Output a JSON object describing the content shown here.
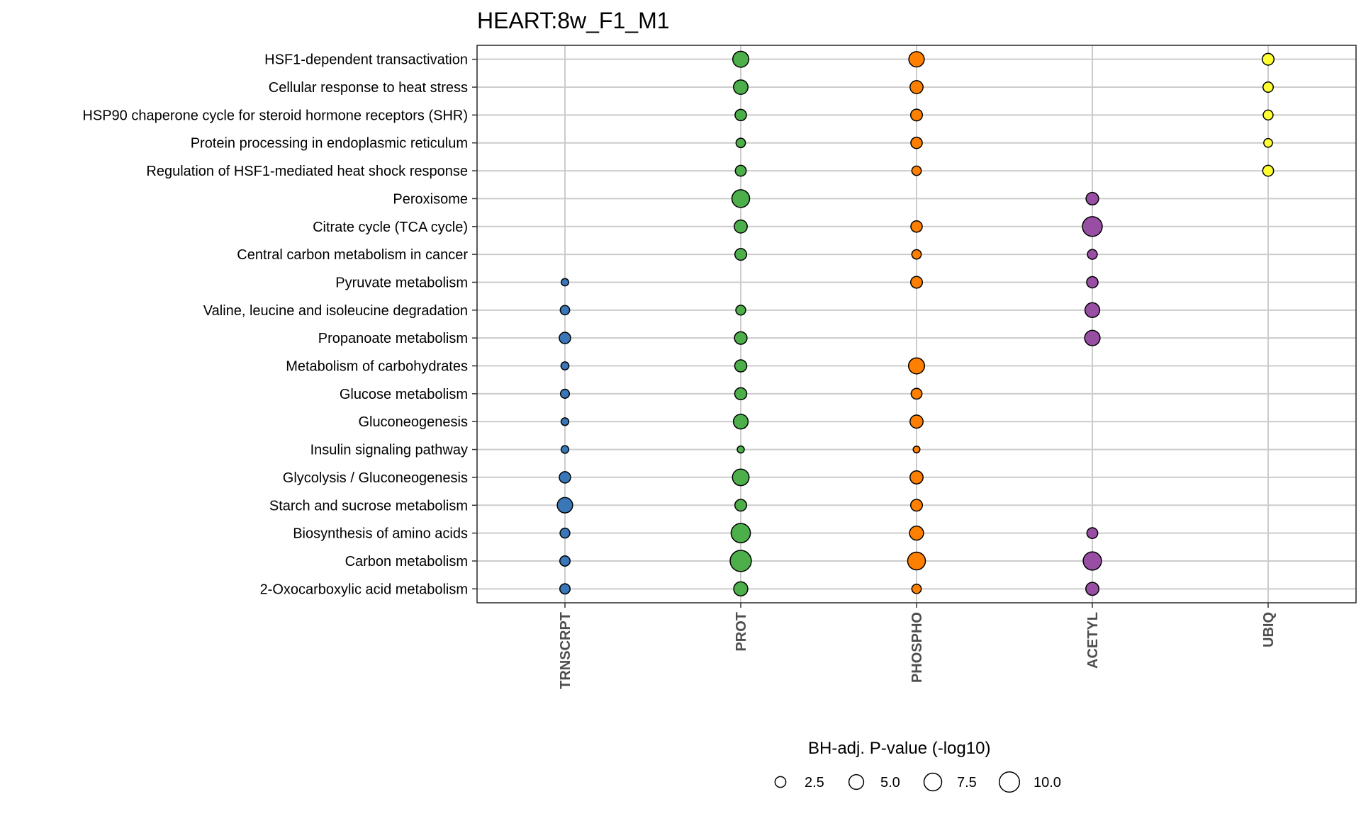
{
  "chart_data": {
    "type": "scatter",
    "title": "HEART:8w_F1_M1",
    "columns": [
      "TRNSCRPT",
      "PROT",
      "PHOSPHO",
      "ACETYL",
      "UBIQ"
    ],
    "column_colors": {
      "TRNSCRPT": "#3a77b8",
      "PROT": "#4daf4a",
      "PHOSPHO": "#ff7f00",
      "ACETYL": "#984ea3",
      "UBIQ": "#ffff33"
    },
    "rows": [
      "HSF1-dependent transactivation",
      "Cellular response to heat stress",
      "HSP90 chaperone cycle for steroid hormone receptors (SHR)",
      "Protein processing in endoplasmic reticulum",
      "Regulation of HSF1-mediated heat shock response",
      "Peroxisome",
      "Citrate cycle (TCA cycle)",
      "Central carbon metabolism in cancer",
      "Pyruvate metabolism",
      "Valine, leucine and isoleucine degradation",
      "Propanoate metabolism",
      "Metabolism of carbohydrates",
      "Glucose metabolism",
      "Gluconeogenesis",
      "Insulin signaling pathway",
      "Glycolysis / Gluconeogenesis",
      "Starch and sucrose metabolism",
      "Biosynthesis of amino acids",
      "Carbon metabolism",
      "2-Oxocarboxylic acid metabolism"
    ],
    "points": [
      {
        "row": "HSF1-dependent transactivation",
        "col": "PROT",
        "value": 6.0
      },
      {
        "row": "HSF1-dependent transactivation",
        "col": "PHOSPHO",
        "value": 5.5
      },
      {
        "row": "HSF1-dependent transactivation",
        "col": "UBIQ",
        "value": 3.0
      },
      {
        "row": "Cellular response to heat stress",
        "col": "PROT",
        "value": 4.8
      },
      {
        "row": "Cellular response to heat stress",
        "col": "PHOSPHO",
        "value": 3.8
      },
      {
        "row": "Cellular response to heat stress",
        "col": "UBIQ",
        "value": 2.2
      },
      {
        "row": "HSP90 chaperone cycle for steroid hormone receptors (SHR)",
        "col": "PROT",
        "value": 2.8
      },
      {
        "row": "HSP90 chaperone cycle for steroid hormone receptors (SHR)",
        "col": "PHOSPHO",
        "value": 3.0
      },
      {
        "row": "HSP90 chaperone cycle for steroid hormone receptors (SHR)",
        "col": "UBIQ",
        "value": 2.0
      },
      {
        "row": "Protein processing in endoplasmic reticulum",
        "col": "PROT",
        "value": 1.8
      },
      {
        "row": "Protein processing in endoplasmic reticulum",
        "col": "PHOSPHO",
        "value": 2.8
      },
      {
        "row": "Protein processing in endoplasmic reticulum",
        "col": "UBIQ",
        "value": 1.5
      },
      {
        "row": "Regulation of HSF1-mediated heat shock response",
        "col": "PROT",
        "value": 2.5
      },
      {
        "row": "Regulation of HSF1-mediated heat shock response",
        "col": "PHOSPHO",
        "value": 1.8
      },
      {
        "row": "Regulation of HSF1-mediated heat shock response",
        "col": "UBIQ",
        "value": 2.5
      },
      {
        "row": "Peroxisome",
        "col": "PROT",
        "value": 7.5
      },
      {
        "row": "Peroxisome",
        "col": "ACETYL",
        "value": 3.5
      },
      {
        "row": "Citrate cycle (TCA cycle)",
        "col": "PROT",
        "value": 3.8
      },
      {
        "row": "Citrate cycle (TCA cycle)",
        "col": "PHOSPHO",
        "value": 2.8
      },
      {
        "row": "Citrate cycle (TCA cycle)",
        "col": "ACETYL",
        "value": 9.5
      },
      {
        "row": "Central carbon metabolism in cancer",
        "col": "PROT",
        "value": 3.0
      },
      {
        "row": "Central carbon metabolism in cancer",
        "col": "PHOSPHO",
        "value": 1.8
      },
      {
        "row": "Central carbon metabolism in cancer",
        "col": "ACETYL",
        "value": 2.0
      },
      {
        "row": "Pyruvate metabolism",
        "col": "TRNSCRPT",
        "value": 1.0
      },
      {
        "row": "Pyruvate metabolism",
        "col": "PHOSPHO",
        "value": 3.0
      },
      {
        "row": "Pyruvate metabolism",
        "col": "ACETYL",
        "value": 2.8
      },
      {
        "row": "Valine, leucine and isoleucine degradation",
        "col": "TRNSCRPT",
        "value": 1.8
      },
      {
        "row": "Valine, leucine and isoleucine degradation",
        "col": "PROT",
        "value": 2.0
      },
      {
        "row": "Valine, leucine and isoleucine degradation",
        "col": "ACETYL",
        "value": 5.0
      },
      {
        "row": "Propanoate metabolism",
        "col": "TRNSCRPT",
        "value": 2.8
      },
      {
        "row": "Propanoate metabolism",
        "col": "PROT",
        "value": 3.5
      },
      {
        "row": "Propanoate metabolism",
        "col": "ACETYL",
        "value": 5.5
      },
      {
        "row": "Metabolism of carbohydrates",
        "col": "TRNSCRPT",
        "value": 1.2
      },
      {
        "row": "Metabolism of carbohydrates",
        "col": "PROT",
        "value": 3.2
      },
      {
        "row": "Metabolism of carbohydrates",
        "col": "PHOSPHO",
        "value": 6.0
      },
      {
        "row": "Glucose metabolism",
        "col": "TRNSCRPT",
        "value": 1.6
      },
      {
        "row": "Glucose metabolism",
        "col": "PROT",
        "value": 3.2
      },
      {
        "row": "Glucose metabolism",
        "col": "PHOSPHO",
        "value": 2.5
      },
      {
        "row": "Gluconeogenesis",
        "col": "TRNSCRPT",
        "value": 1.1
      },
      {
        "row": "Gluconeogenesis",
        "col": "PROT",
        "value": 5.0
      },
      {
        "row": "Gluconeogenesis",
        "col": "PHOSPHO",
        "value": 3.8
      },
      {
        "row": "Insulin signaling pathway",
        "col": "TRNSCRPT",
        "value": 1.1
      },
      {
        "row": "Insulin signaling pathway",
        "col": "PROT",
        "value": 0.9
      },
      {
        "row": "Insulin signaling pathway",
        "col": "PHOSPHO",
        "value": 0.8
      },
      {
        "row": "Glycolysis / Gluconeogenesis",
        "col": "TRNSCRPT",
        "value": 2.8
      },
      {
        "row": "Glycolysis / Gluconeogenesis",
        "col": "PROT",
        "value": 6.5
      },
      {
        "row": "Glycolysis / Gluconeogenesis",
        "col": "PHOSPHO",
        "value": 3.8
      },
      {
        "row": "Starch and sucrose metabolism",
        "col": "TRNSCRPT",
        "value": 5.5
      },
      {
        "row": "Starch and sucrose metabolism",
        "col": "PROT",
        "value": 3.0
      },
      {
        "row": "Starch and sucrose metabolism",
        "col": "PHOSPHO",
        "value": 3.0
      },
      {
        "row": "Biosynthesis of amino acids",
        "col": "TRNSCRPT",
        "value": 2.0
      },
      {
        "row": "Biosynthesis of amino acids",
        "col": "PROT",
        "value": 9.0
      },
      {
        "row": "Biosynthesis of amino acids",
        "col": "PHOSPHO",
        "value": 4.5
      },
      {
        "row": "Biosynthesis of amino acids",
        "col": "ACETYL",
        "value": 2.5
      },
      {
        "row": "Carbon metabolism",
        "col": "TRNSCRPT",
        "value": 2.2
      },
      {
        "row": "Carbon metabolism",
        "col": "PROT",
        "value": 11.0
      },
      {
        "row": "Carbon metabolism",
        "col": "PHOSPHO",
        "value": 7.5
      },
      {
        "row": "Carbon metabolism",
        "col": "ACETYL",
        "value": 8.0
      },
      {
        "row": "2-Oxocarboxylic acid metabolism",
        "col": "TRNSCRPT",
        "value": 2.2
      },
      {
        "row": "2-Oxocarboxylic acid metabolism",
        "col": "PROT",
        "value": 4.5
      },
      {
        "row": "2-Oxocarboxylic acid metabolism",
        "col": "PHOSPHO",
        "value": 1.8
      },
      {
        "row": "2-Oxocarboxylic acid metabolism",
        "col": "ACETYL",
        "value": 3.8
      }
    ],
    "legend": {
      "title": "BH-adj. P-value (-log10)",
      "values": [
        2.5,
        5.0,
        7.5,
        10.0
      ],
      "labels": [
        "2.5",
        "5.0",
        "7.5",
        "10.0"
      ],
      "placement": "bottom"
    },
    "grid": true
  }
}
